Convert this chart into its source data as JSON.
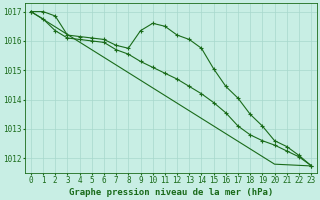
{
  "x": [
    0,
    1,
    2,
    3,
    4,
    5,
    6,
    7,
    8,
    9,
    10,
    11,
    12,
    13,
    14,
    15,
    16,
    17,
    18,
    19,
    20,
    21,
    22,
    23
  ],
  "line1": [
    1017.0,
    1017.0,
    1016.85,
    1016.2,
    1016.15,
    1016.1,
    1016.05,
    1015.85,
    1015.75,
    1016.35,
    1016.6,
    1016.5,
    1016.2,
    1016.05,
    1015.75,
    1015.05,
    1014.45,
    1014.05,
    1013.5,
    1013.1,
    1012.6,
    1012.4,
    1012.1,
    1011.75
  ],
  "line2": [
    1017.0,
    1016.75,
    1016.35,
    1016.1,
    1016.05,
    1016.0,
    1015.95,
    1015.7,
    1015.55,
    1015.3,
    1015.1,
    1014.9,
    1014.7,
    1014.45,
    1014.2,
    1013.9,
    1013.55,
    1013.1,
    1012.8,
    1012.6,
    1012.45,
    1012.25,
    1012.05,
    1011.75
  ],
  "line3": [
    1017.0,
    1016.74,
    1016.48,
    1016.22,
    1015.96,
    1015.7,
    1015.44,
    1015.18,
    1014.92,
    1014.66,
    1014.4,
    1014.14,
    1013.88,
    1013.62,
    1013.36,
    1013.1,
    1012.84,
    1012.58,
    1012.32,
    1012.06,
    1011.8,
    1011.78,
    1011.76,
    1011.74
  ],
  "ylim": [
    1011.5,
    1017.3
  ],
  "yticks": [
    1012,
    1013,
    1014,
    1015,
    1016,
    1017
  ],
  "xlim": [
    -0.5,
    23.5
  ],
  "xlabel": "Graphe pression niveau de la mer (hPa)",
  "line_color": "#1a6b1a",
  "bg_color": "#c8eee4",
  "grid_color_major": "#a8d8cc",
  "grid_color_minor": "#b8e4d8",
  "marker": "+",
  "tick_fontsize": 5.5,
  "xlabel_fontsize": 6.5
}
